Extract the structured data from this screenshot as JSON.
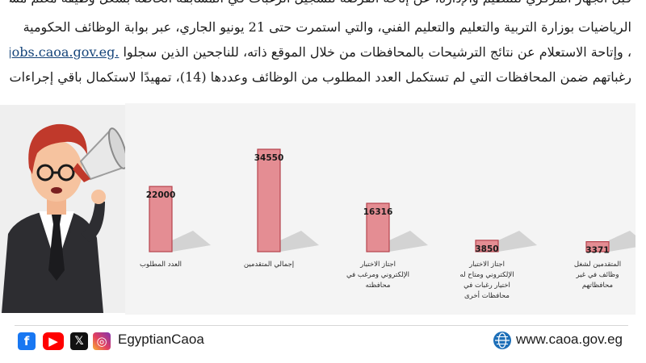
{
  "article": {
    "line0": "قبل الجهاز المركزي للتنظيم والإدارة، عن إتاحة الفرصة لتسجيل الرغبات في المسابقة الخاصة بشغل وظيفة معلم مساعد مادة",
    "line1": "الرياضيات بوزارة التربية والتعليم والتعليم الفني، والتي استمرت حتى 21 يونيو الجاري، عبر بوابة الوظائف الحكومية",
    "line2_link": "https://jobs.caoa.gov.eg.",
    "line2_text": "، وإتاحة الاستعلام عن نتائج الترشيحات بالمحافظات من خلال الموقع ذاته، للناجحين الذين سجلوا",
    "line3": "رغباتهم ضمن المحافظات التي لم تستكمل العدد المطلوب من الوظائف وعددها (14)، تمهيدًا لاستكمال باقي إجراءات المسابقة."
  },
  "chart_data": {
    "type": "bar",
    "categories": [
      "العدد المطلوب",
      "إجمالي المتقدمين",
      "اجتاز الاختبار الإلكتروني ومرغب في محافظته",
      "اجتاز الاختبار الإلكتروني ومتاح له اختيار رغبات في محافظات أخرى",
      "المتقدمين لشغل وظائف في غير محافظاتهم"
    ],
    "values": [
      22000,
      34550,
      16316,
      3850,
      3371
    ],
    "value_labels": [
      "22000",
      "34550",
      "16316",
      "3850",
      "3371"
    ],
    "category_lines": [
      [
        "العدد المطلوب"
      ],
      [
        "إجمالي المتقدمين"
      ],
      [
        "اجتاز الاختبار",
        "الإلكتروني ومرغب في",
        "محافظته"
      ],
      [
        "اجتاز الاختبار",
        "الإلكتروني ومتاح له",
        "اختيار رغبات في",
        "محافظات أخرى"
      ],
      [
        "المتقدمين لشغل",
        "وظائف في غير",
        "محافظاتهم"
      ]
    ],
    "ylim": [
      0,
      40000
    ],
    "bar_color": "#e48d93",
    "bar_edge": "#b6434d",
    "shadow_color": "#cbcbcb",
    "grid": false,
    "legend": "none"
  },
  "footer": {
    "social_icons": [
      "facebook-icon",
      "youtube-icon",
      "x-icon",
      "instagram-icon"
    ],
    "social_glyphs": {
      "facebook": "f",
      "youtube": "▶",
      "x": "𝕏",
      "instagram": "◎"
    },
    "handle": "EgyptianCaoa",
    "website": "www.caoa.gov.eg",
    "globe_icon": "globe-icon"
  }
}
